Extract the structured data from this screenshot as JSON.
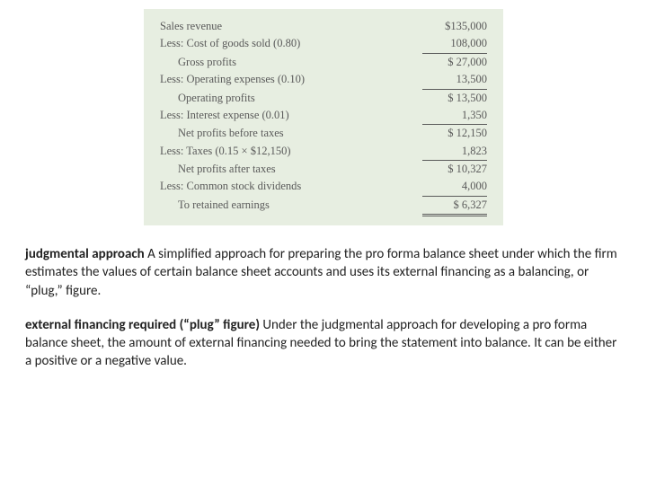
{
  "statement": {
    "background": "#e7eee1",
    "text_color": "#5a5a5a",
    "font_family": "Georgia, serif",
    "rows": [
      {
        "label": "Sales revenue",
        "value": "$135,000",
        "indent": false,
        "rule": "none"
      },
      {
        "label": "Less: Cost of goods sold (0.80)",
        "value": "108,000",
        "indent": false,
        "rule": "single"
      },
      {
        "label": "Gross profits",
        "value": "$  27,000",
        "indent": true,
        "rule": "none"
      },
      {
        "label": "Less: Operating expenses (0.10)",
        "value": "13,500",
        "indent": false,
        "rule": "single"
      },
      {
        "label": "Operating profits",
        "value": "$  13,500",
        "indent": true,
        "rule": "none"
      },
      {
        "label": "Less: Interest expense (0.01)",
        "value": "1,350",
        "indent": false,
        "rule": "single"
      },
      {
        "label": "Net profits before taxes",
        "value": "$  12,150",
        "indent": true,
        "rule": "none"
      },
      {
        "label": "Less: Taxes (0.15 × $12,150)",
        "value": "1,823",
        "indent": false,
        "rule": "single"
      },
      {
        "label": "Net profits after taxes",
        "value": "$  10,327",
        "indent": true,
        "rule": "none"
      },
      {
        "label": "Less: Common stock dividends",
        "value": "4,000",
        "indent": false,
        "rule": "single"
      },
      {
        "label": "To retained earnings",
        "value": "$    6,327",
        "indent": true,
        "rule": "double"
      }
    ]
  },
  "definitions": [
    {
      "term": "judgmental approach",
      "sep": "   ",
      "body": "A simplified approach for preparing the pro forma balance sheet under which the firm estimates the values of certain balance sheet accounts and uses its external financing as a balancing, or “plug,” figure."
    },
    {
      "term": "external financing required (“plug” figure)",
      "sep": "  ",
      "body": "Under the judgmental approach for developing a pro forma balance sheet, the amount of external financing needed to bring the statement into balance. It can be either a positive or a negative value."
    }
  ]
}
